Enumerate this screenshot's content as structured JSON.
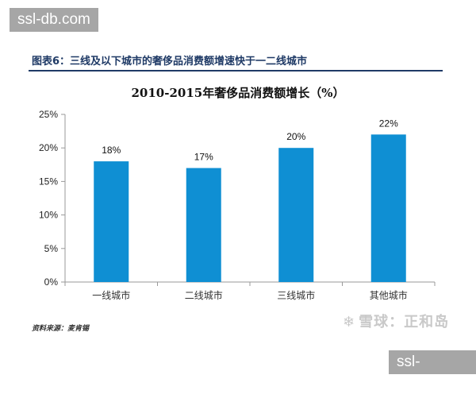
{
  "watermark": {
    "site_top": "ssl-db.com",
    "site_bottom": "ssl-db.com"
  },
  "figure": {
    "caption": "图表6：三线及以下城市的奢侈品消费额增速快于一二线城市",
    "source": "资料来源：麦肯锡",
    "brand": "雪球：正和岛",
    "brand_icon": "snowball-logo-icon"
  },
  "chart_data": {
    "type": "bar",
    "title": "2010-2015年奢侈品消费额增长（%）",
    "categories": [
      "一线城市",
      "二线城市",
      "三线城市",
      "其他城市"
    ],
    "values": [
      18,
      17,
      20,
      22
    ],
    "data_labels": [
      "18%",
      "17%",
      "20%",
      "22%"
    ],
    "ylim": [
      0,
      25
    ],
    "yticks": [
      0,
      5,
      10,
      15,
      20,
      25
    ],
    "ytick_labels": [
      "0%",
      "5%",
      "10%",
      "15%",
      "20%",
      "25%"
    ],
    "xlabel": "",
    "ylabel": "",
    "grid": false,
    "colors": {
      "bar": "#0f8fd3",
      "axis": "#999999"
    }
  }
}
